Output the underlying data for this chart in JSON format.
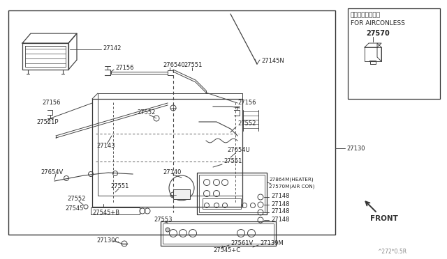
{
  "bg_color": "#ffffff",
  "line_color": "#444444",
  "text_color": "#222222",
  "inset_text_line1": "エアコン無し仕様",
  "inset_text_line2": "FOR AIRCONLESS",
  "inset_part": "27570",
  "front_arrow_text": "FRONT",
  "bottom_ref": "^272*0.5R",
  "fig_w": 6.4,
  "fig_h": 3.72,
  "dpi": 100
}
